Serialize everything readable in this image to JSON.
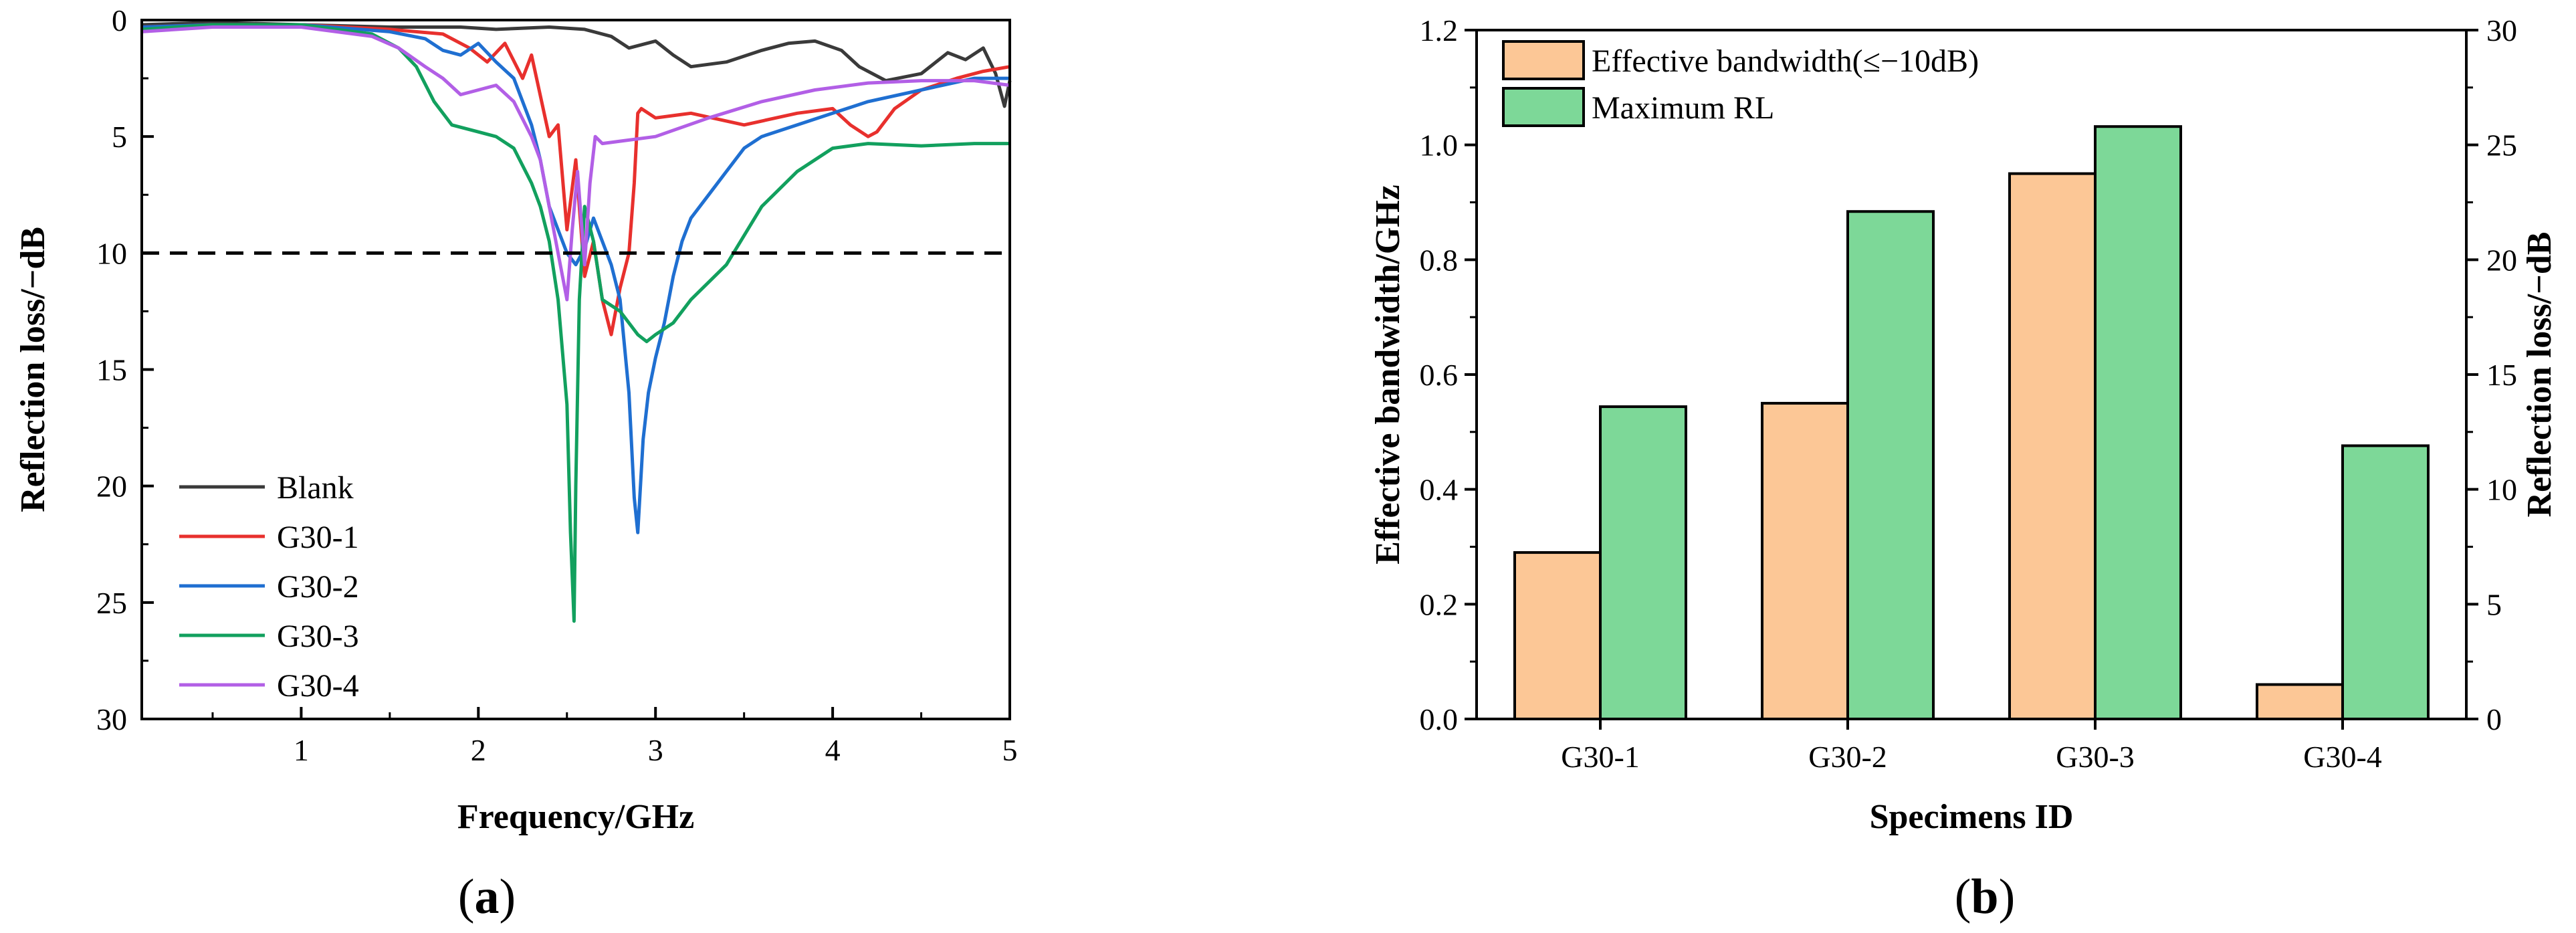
{
  "chart_data": [
    {
      "panel": "a",
      "type": "line",
      "panel_label_open": "(",
      "panel_label_letter": "a",
      "panel_label_close": ")",
      "xlabel": "Frequency/GHz",
      "ylabel": "Reflection loss/−dB",
      "xlim": [
        0.1,
        5.0
      ],
      "ylim": [
        0,
        30
      ],
      "y_inverted": true,
      "x_ticks": [
        1,
        2,
        3,
        4,
        5
      ],
      "y_ticks": [
        0,
        5,
        10,
        15,
        20,
        25,
        30
      ],
      "threshold": {
        "value": 10,
        "style": "dashed"
      },
      "legend_position": "bottom-left",
      "series": [
        {
          "name": "Blank",
          "color": "#3a3a3a",
          "x": [
            0.1,
            0.5,
            1.0,
            1.5,
            1.9,
            2.1,
            2.4,
            2.6,
            2.75,
            2.85,
            3.0,
            3.1,
            3.2,
            3.4,
            3.6,
            3.75,
            3.9,
            4.05,
            4.15,
            4.3,
            4.5,
            4.65,
            4.75,
            4.85,
            4.92,
            4.97,
            5.0
          ],
          "values": [
            0.2,
            0.1,
            0.2,
            0.3,
            0.3,
            0.4,
            0.3,
            0.4,
            0.7,
            1.2,
            0.9,
            1.5,
            2.0,
            1.8,
            1.3,
            1.0,
            0.9,
            1.3,
            2.0,
            2.6,
            2.3,
            1.4,
            1.7,
            1.2,
            2.3,
            3.7,
            2.6
          ]
        },
        {
          "name": "G30-1",
          "color": "#e8302d",
          "x": [
            0.1,
            0.5,
            1.0,
            1.5,
            1.8,
            1.95,
            2.05,
            2.15,
            2.25,
            2.3,
            2.4,
            2.45,
            2.5,
            2.55,
            2.6,
            2.65,
            2.7,
            2.75,
            2.8,
            2.85,
            2.88,
            2.9,
            2.92,
            3.0,
            3.2,
            3.5,
            3.8,
            4.0,
            4.1,
            4.2,
            4.25,
            4.35,
            4.5,
            4.7,
            4.85,
            5.0
          ],
          "values": [
            0.3,
            0.2,
            0.2,
            0.4,
            0.6,
            1.2,
            1.8,
            1.0,
            2.5,
            1.5,
            5.0,
            4.5,
            9.0,
            6.0,
            11.0,
            9.5,
            12.0,
            13.5,
            11.5,
            10.0,
            7.0,
            4.0,
            3.8,
            4.2,
            4.0,
            4.5,
            4.0,
            3.8,
            4.5,
            5.0,
            4.8,
            3.8,
            3.0,
            2.5,
            2.2,
            2.0
          ]
        },
        {
          "name": "G30-2",
          "color": "#1f6fd1",
          "x": [
            0.1,
            0.5,
            1.0,
            1.5,
            1.7,
            1.8,
            1.9,
            2.0,
            2.1,
            2.2,
            2.3,
            2.35,
            2.4,
            2.45,
            2.5,
            2.55,
            2.6,
            2.65,
            2.7,
            2.75,
            2.8,
            2.85,
            2.88,
            2.9,
            2.93,
            2.96,
            3.0,
            3.05,
            3.1,
            3.15,
            3.2,
            3.3,
            3.4,
            3.5,
            3.6,
            3.8,
            4.0,
            4.2,
            4.5,
            4.8,
            5.0
          ],
          "values": [
            0.3,
            0.2,
            0.2,
            0.5,
            0.8,
            1.3,
            1.5,
            1.0,
            1.8,
            2.5,
            4.5,
            6.0,
            8.0,
            9.0,
            10.0,
            10.5,
            9.8,
            8.5,
            9.5,
            10.5,
            12.0,
            16.0,
            20.5,
            22.0,
            18.0,
            16.0,
            14.5,
            13.0,
            11.0,
            9.5,
            8.5,
            7.5,
            6.5,
            5.5,
            5.0,
            4.5,
            4.0,
            3.5,
            3.0,
            2.5,
            2.5
          ]
        },
        {
          "name": "G30-3",
          "color": "#12a05e",
          "x": [
            0.1,
            0.5,
            1.0,
            1.4,
            1.55,
            1.65,
            1.75,
            1.85,
            2.0,
            2.1,
            2.2,
            2.3,
            2.35,
            2.4,
            2.45,
            2.5,
            2.52,
            2.54,
            2.55,
            2.57,
            2.6,
            2.65,
            2.7,
            2.8,
            2.9,
            2.95,
            3.0,
            3.1,
            3.2,
            3.4,
            3.6,
            3.8,
            4.0,
            4.2,
            4.5,
            4.8,
            5.0
          ],
          "values": [
            0.4,
            0.2,
            0.2,
            0.6,
            1.2,
            2.0,
            3.5,
            4.5,
            4.8,
            5.0,
            5.5,
            7.0,
            8.0,
            9.5,
            12.0,
            16.5,
            22.0,
            25.8,
            20.0,
            12.0,
            8.0,
            9.5,
            12.0,
            12.5,
            13.5,
            13.8,
            13.5,
            13.0,
            12.0,
            10.5,
            8.0,
            6.5,
            5.5,
            5.3,
            5.4,
            5.3,
            5.3
          ]
        },
        {
          "name": "G30-4",
          "color": "#b25fe6",
          "x": [
            0.1,
            0.5,
            1.0,
            1.4,
            1.55,
            1.7,
            1.8,
            1.9,
            2.0,
            2.1,
            2.2,
            2.3,
            2.35,
            2.4,
            2.45,
            2.5,
            2.53,
            2.56,
            2.6,
            2.63,
            2.66,
            2.7,
            2.8,
            3.0,
            3.3,
            3.6,
            3.9,
            4.2,
            4.5,
            4.8,
            5.0
          ],
          "values": [
            0.5,
            0.3,
            0.3,
            0.7,
            1.2,
            2.0,
            2.5,
            3.2,
            3.0,
            2.8,
            3.5,
            5.0,
            6.0,
            8.0,
            10.0,
            12.0,
            9.0,
            6.5,
            10.5,
            7.0,
            5.0,
            5.3,
            5.2,
            5.0,
            4.2,
            3.5,
            3.0,
            2.7,
            2.6,
            2.6,
            2.8
          ]
        }
      ]
    },
    {
      "panel": "b",
      "type": "bar",
      "panel_label_open": "(",
      "panel_label_letter": "b",
      "panel_label_close": ")",
      "xlabel": "Specimens ID",
      "ylabel": "Effective bandwidth/GHz",
      "y2label": "Reflection loss/−dB",
      "categories": [
        "G30-1",
        "G30-2",
        "G30-3",
        "G30-4"
      ],
      "ylim": [
        0,
        1.2
      ],
      "y2lim": [
        0,
        30
      ],
      "y_ticks": [
        "0.0",
        "0.2",
        "0.4",
        "0.6",
        "0.8",
        "1.0",
        "1.2"
      ],
      "y2_ticks": [
        "0",
        "5",
        "10",
        "15",
        "20",
        "25",
        "30"
      ],
      "legend_position": "top-left",
      "series": [
        {
          "name": "Effective bandwidth(≤−10dB)",
          "axis": "left",
          "color": "#fcc796",
          "values": [
            0.29,
            0.55,
            0.95,
            0.06
          ]
        },
        {
          "name": "Maximum RL",
          "axis": "right",
          "color": "#7dd898",
          "values": [
            13.6,
            22.1,
            25.8,
            11.9
          ]
        }
      ]
    }
  ]
}
